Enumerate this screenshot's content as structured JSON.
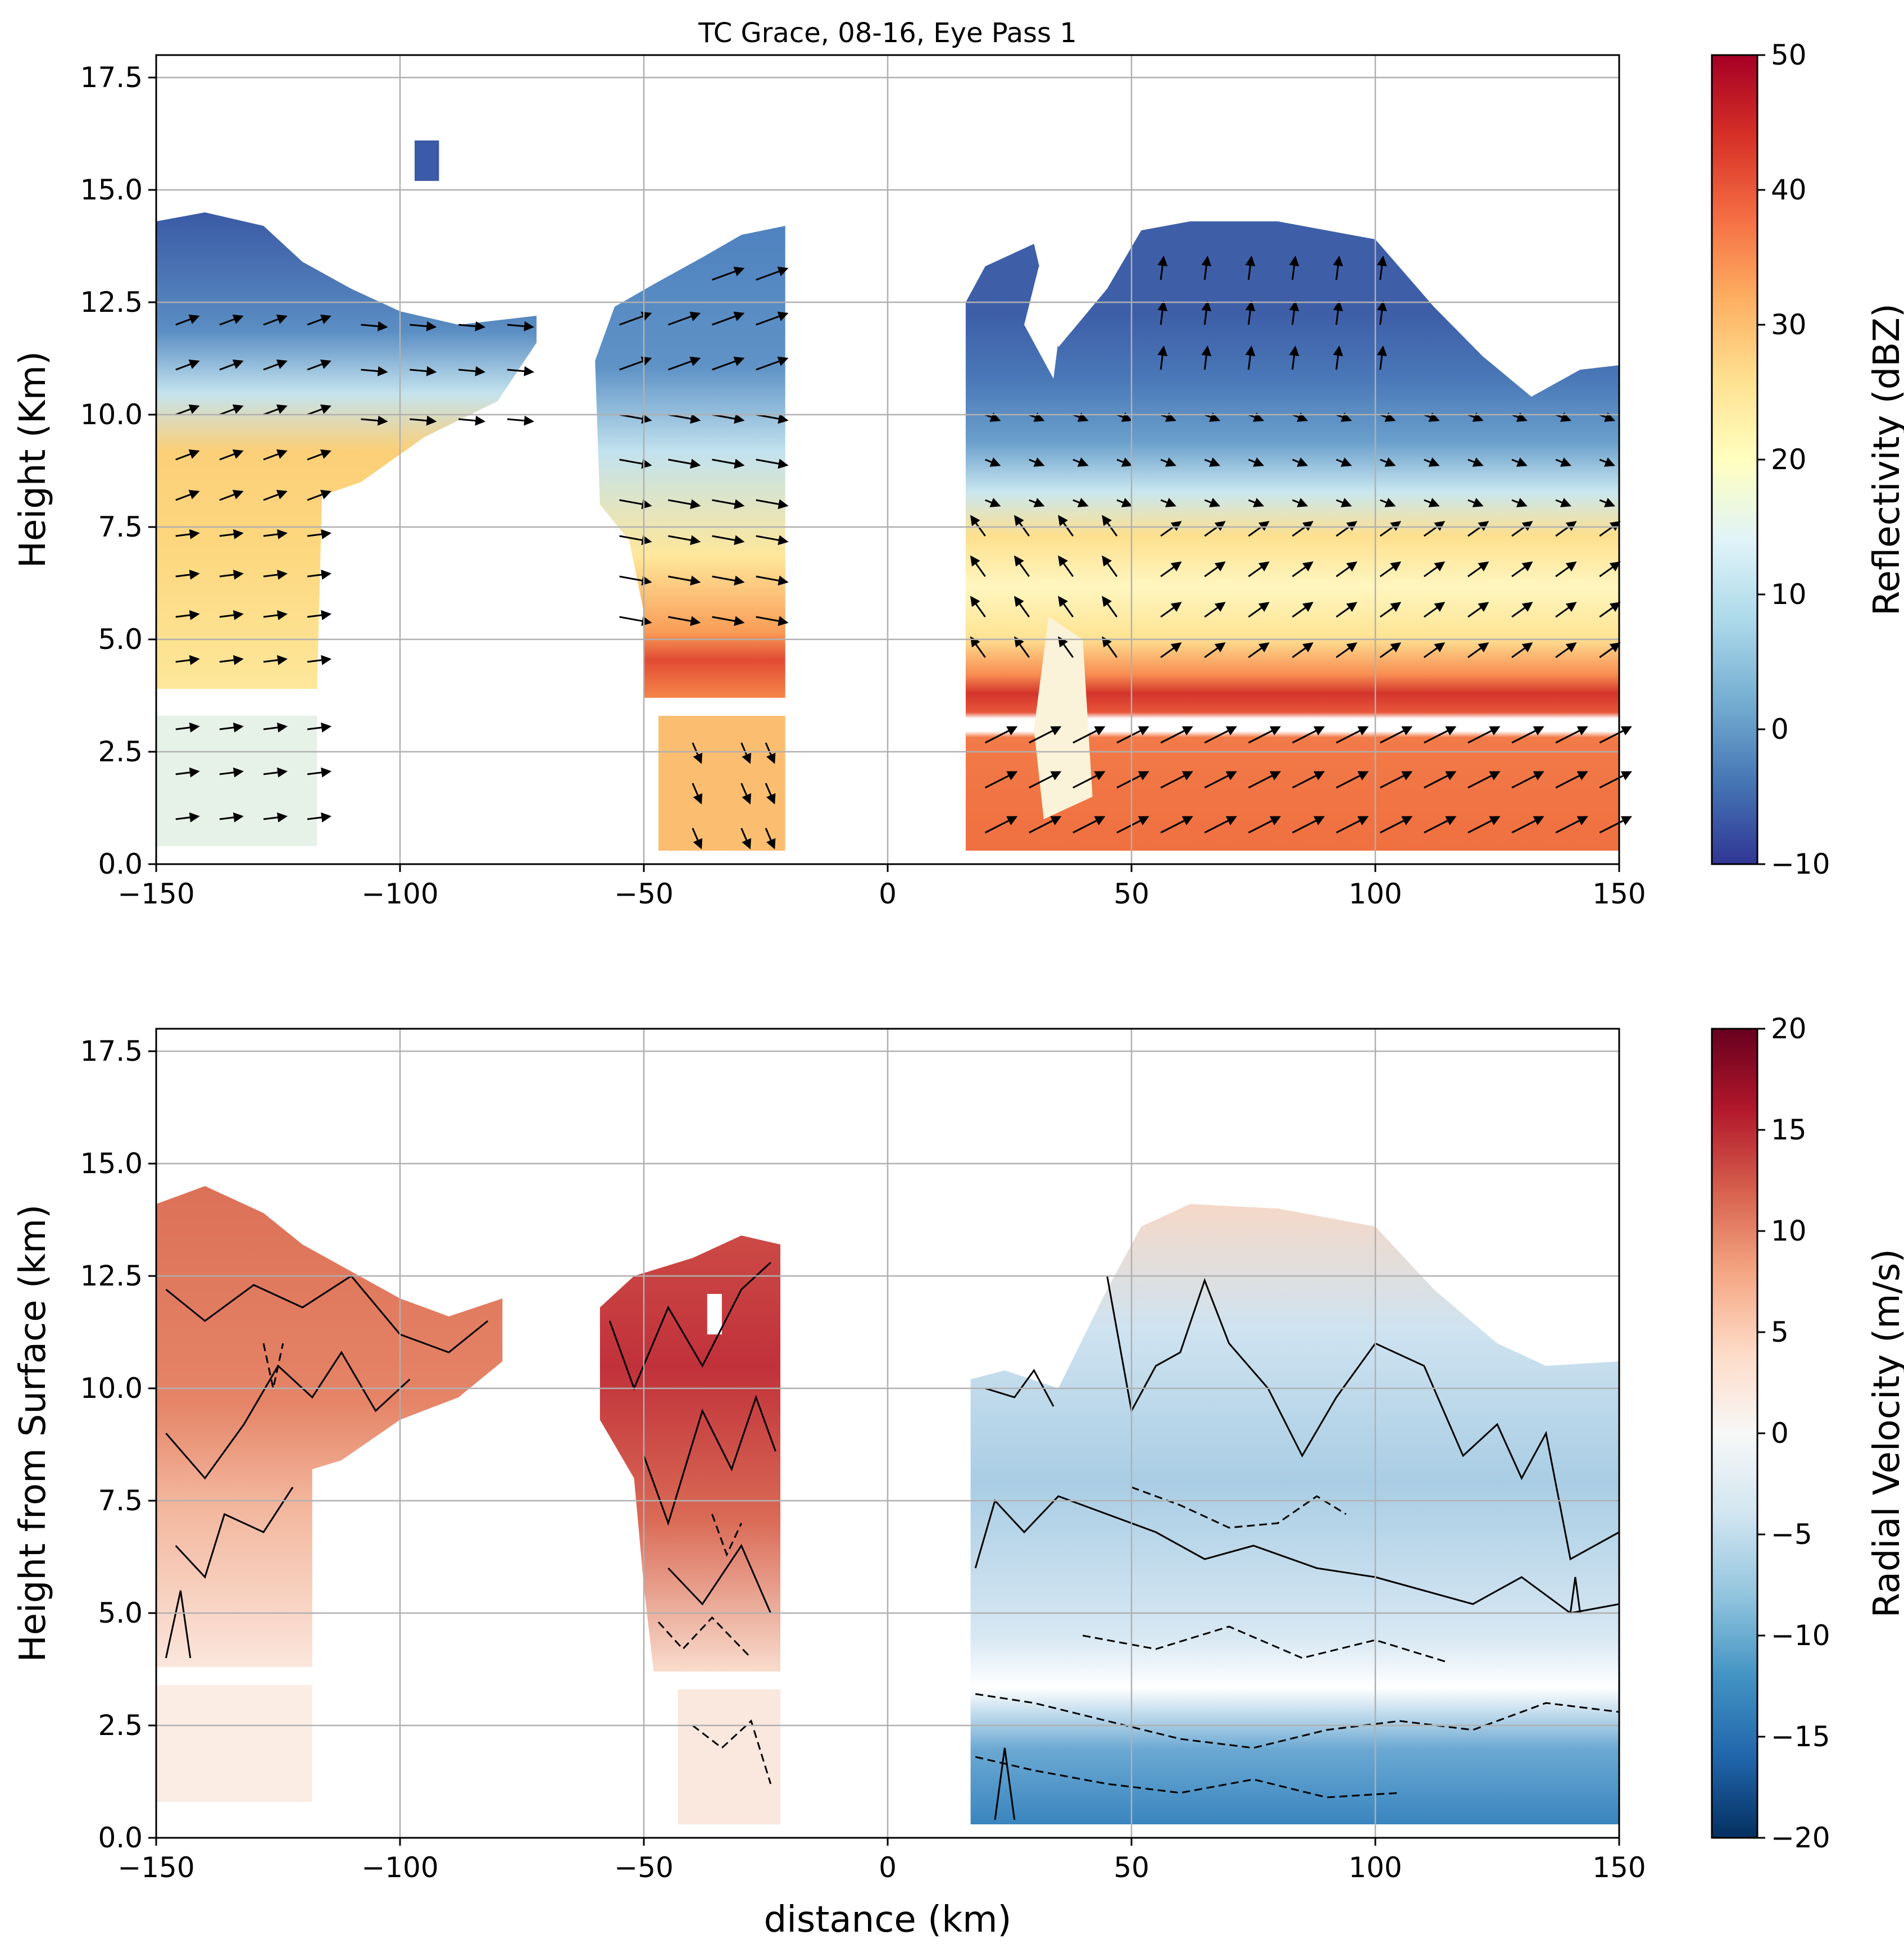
{
  "chart_data": [
    {
      "type": "heatmap",
      "panel": "top",
      "title": "TC Grace, 08-16, Eye Pass 1",
      "xlabel": "",
      "ylabel": "Height (Km)",
      "xlim": [
        -150,
        150
      ],
      "ylim": [
        0,
        18
      ],
      "xticks": [
        -150,
        -100,
        -50,
        0,
        50,
        100,
        150
      ],
      "xtick_labels": [
        "−150",
        "−100",
        "−50",
        "0",
        "50",
        "100",
        "150"
      ],
      "yticks": [
        0,
        2.5,
        5,
        7.5,
        10,
        12.5,
        15,
        17.5
      ],
      "ytick_labels": [
        "0.0",
        "2.5",
        "5.0",
        "7.5",
        "10.0",
        "12.5",
        "15.0",
        "17.5"
      ],
      "grid": true,
      "colorbar": {
        "label": "Reflectivity (dBZ)",
        "min": -10,
        "max": 50,
        "ticks": [
          -10,
          0,
          10,
          20,
          30,
          40,
          50
        ],
        "tick_labels": [
          "−10",
          "0",
          "10",
          "20",
          "30",
          "40",
          "50"
        ],
        "colormap": "RdYlBu_r"
      },
      "regions": [
        {
          "x0": -150,
          "x1": -117,
          "ybot": 3.9,
          "ytop": 14.5,
          "lower_x1": -117,
          "lower_top": 3.3,
          "lower_bot": 0.4
        },
        {
          "x0": -117,
          "x1": -70,
          "ybot": 8.2,
          "ytop": 12.8
        },
        {
          "x0": -60,
          "x1": -21,
          "ybot": 3.7,
          "ytop": 14.2,
          "lower_x0": -47,
          "lower_top": 3.3,
          "lower_bot": 0.3
        },
        {
          "x0": 16,
          "x1": 150,
          "ybot": 0.3,
          "ytop": 14.3
        }
      ],
      "bright_band_km": 4.5,
      "data_gap_km": 3.45,
      "wind_vectors": "2D wind arrows overlaid on reflectivity field"
    },
    {
      "type": "heatmap",
      "panel": "bottom",
      "title": "",
      "xlabel": "distance (km)",
      "ylabel": "Height from Surface (km)",
      "xlim": [
        -150,
        150
      ],
      "ylim": [
        0,
        18
      ],
      "xticks": [
        -150,
        -100,
        -50,
        0,
        50,
        100,
        150
      ],
      "xtick_labels": [
        "−150",
        "−100",
        "−50",
        "0",
        "50",
        "100",
        "150"
      ],
      "yticks": [
        0,
        2.5,
        5,
        7.5,
        10,
        12.5,
        15,
        17.5
      ],
      "ytick_labels": [
        "0.0",
        "2.5",
        "5.0",
        "7.5",
        "10.0",
        "12.5",
        "15.0",
        "17.5"
      ],
      "grid": true,
      "colorbar": {
        "label": "Radial Velocity (m/s)",
        "min": -20,
        "max": 20,
        "ticks": [
          -20,
          -15,
          -10,
          -5,
          0,
          5,
          10,
          15,
          20
        ],
        "tick_labels": [
          "−20",
          "−15",
          "−10",
          "−5",
          "0",
          "5",
          "10",
          "15",
          "20"
        ],
        "colormap": "RdBu_r"
      },
      "contours": "solid = positive, dashed = negative"
    }
  ]
}
